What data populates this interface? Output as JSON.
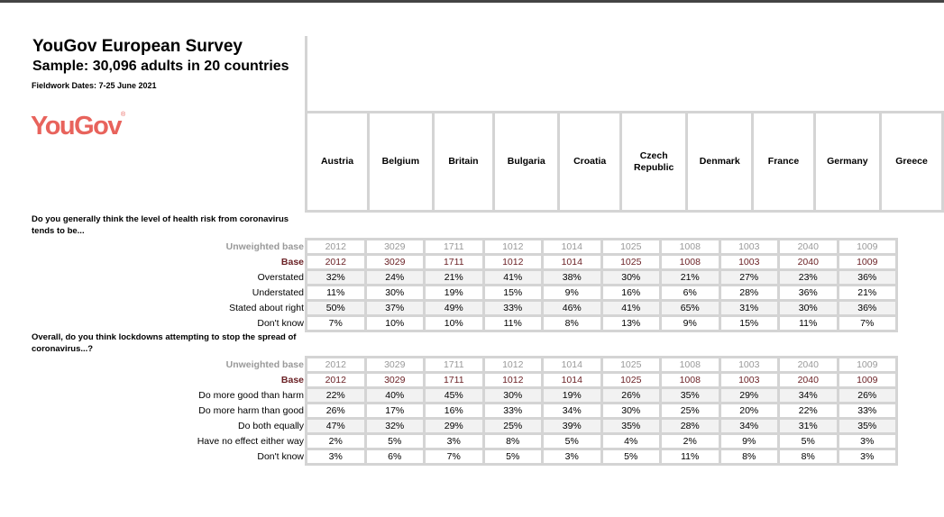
{
  "header": {
    "title": "YouGov European Survey",
    "subtitle": "Sample: 30,096 adults in 20 countries",
    "fieldwork": "Fieldwork Dates: 7-25 June 2021",
    "logo": "YouGov"
  },
  "countries": [
    "Austria",
    "Belgium",
    "Britain",
    "Bulgaria",
    "Croatia",
    "Czech Republic",
    "Denmark",
    "France",
    "Germany",
    "Greece"
  ],
  "colors": {
    "logo": "#e8635c",
    "base": "#6b2226",
    "unweighted": "#999999",
    "grid": "#d4d4d4"
  },
  "questions": [
    {
      "text": "Do you generally think the level of health risk from coronavirus tends to be...",
      "rows": [
        {
          "label": "Unweighted base",
          "type": "unw",
          "values": [
            "2012",
            "3029",
            "1711",
            "1012",
            "1014",
            "1025",
            "1008",
            "1003",
            "2040",
            "1009"
          ]
        },
        {
          "label": "Base",
          "type": "base",
          "values": [
            "2012",
            "3029",
            "1711",
            "1012",
            "1014",
            "1025",
            "1008",
            "1003",
            "2040",
            "1009"
          ]
        },
        {
          "label": "Overstated",
          "type": "alt",
          "values": [
            "32%",
            "24%",
            "21%",
            "41%",
            "38%",
            "30%",
            "21%",
            "27%",
            "23%",
            "36%"
          ]
        },
        {
          "label": "Understated",
          "type": "",
          "values": [
            "11%",
            "30%",
            "19%",
            "15%",
            "9%",
            "16%",
            "6%",
            "28%",
            "36%",
            "21%"
          ]
        },
        {
          "label": "Stated about right",
          "type": "alt",
          "values": [
            "50%",
            "37%",
            "49%",
            "33%",
            "46%",
            "41%",
            "65%",
            "31%",
            "30%",
            "36%"
          ]
        },
        {
          "label": "Don't know",
          "type": "",
          "values": [
            "7%",
            "10%",
            "10%",
            "11%",
            "8%",
            "13%",
            "9%",
            "15%",
            "11%",
            "7%"
          ]
        }
      ]
    },
    {
      "text": "Overall, do you think lockdowns attempting to stop the spread of coronavirus...?",
      "rows": [
        {
          "label": "Unweighted base",
          "type": "unw",
          "values": [
            "2012",
            "3029",
            "1711",
            "1012",
            "1014",
            "1025",
            "1008",
            "1003",
            "2040",
            "1009"
          ]
        },
        {
          "label": "Base",
          "type": "base",
          "values": [
            "2012",
            "3029",
            "1711",
            "1012",
            "1014",
            "1025",
            "1008",
            "1003",
            "2040",
            "1009"
          ]
        },
        {
          "label": "Do more good than harm",
          "type": "alt",
          "values": [
            "22%",
            "40%",
            "45%",
            "30%",
            "19%",
            "26%",
            "35%",
            "29%",
            "34%",
            "26%"
          ]
        },
        {
          "label": "Do more harm than good",
          "type": "",
          "values": [
            "26%",
            "17%",
            "16%",
            "33%",
            "34%",
            "30%",
            "25%",
            "20%",
            "22%",
            "33%"
          ]
        },
        {
          "label": "Do both equally",
          "type": "alt",
          "values": [
            "47%",
            "32%",
            "29%",
            "25%",
            "39%",
            "35%",
            "28%",
            "34%",
            "31%",
            "35%"
          ]
        },
        {
          "label": "Have no effect either way",
          "type": "",
          "values": [
            "2%",
            "5%",
            "3%",
            "8%",
            "5%",
            "4%",
            "2%",
            "9%",
            "5%",
            "3%"
          ]
        },
        {
          "label": "Don't know",
          "type": "",
          "values": [
            "3%",
            "6%",
            "7%",
            "5%",
            "3%",
            "5%",
            "11%",
            "8%",
            "8%",
            "3%"
          ]
        }
      ]
    }
  ]
}
